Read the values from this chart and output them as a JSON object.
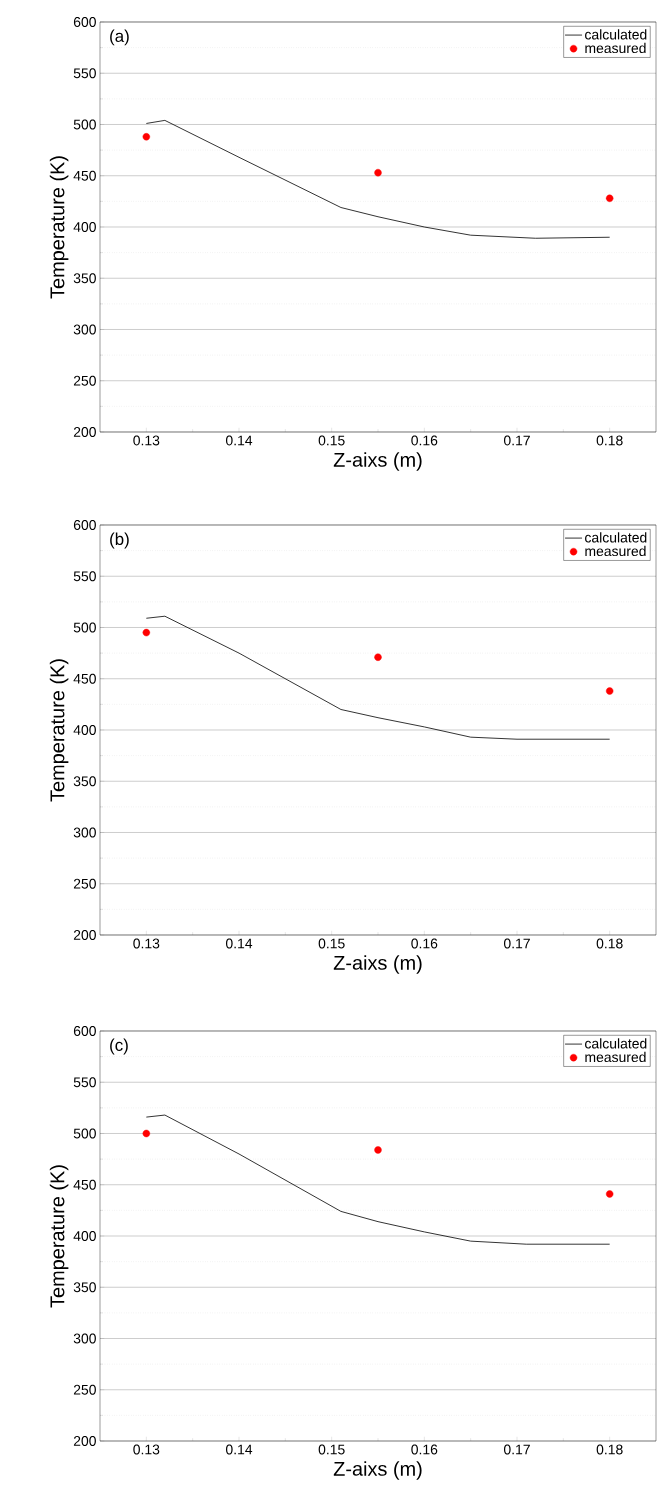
{
  "chart_data": [
    {
      "type": "line",
      "title": "(a)",
      "xlabel": "Z-aixs (m)",
      "ylabel": "Temperature (K)",
      "xlim": [
        0.125,
        0.185
      ],
      "ylim": [
        200,
        600
      ],
      "xticks": [
        0.13,
        0.14,
        0.15,
        0.16,
        0.17,
        0.18
      ],
      "yticks": [
        200,
        250,
        300,
        350,
        400,
        450,
        500,
        550,
        600
      ],
      "grid": "y",
      "legend": "top right",
      "series": [
        {
          "name": "calculated",
          "marker": "none",
          "color": "#000000",
          "x": [
            0.13,
            0.132,
            0.14,
            0.151,
            0.155,
            0.16,
            0.165,
            0.172,
            0.18
          ],
          "values": [
            501,
            504,
            468,
            419,
            410,
            400,
            392,
            389,
            390
          ]
        },
        {
          "name": "measured",
          "type": "scatter",
          "marker": "circle",
          "color": "#ff0000",
          "x": [
            0.13,
            0.155,
            0.18
          ],
          "values": [
            488,
            453,
            428
          ]
        }
      ]
    },
    {
      "type": "line",
      "title": "(b)",
      "xlabel": "Z-aixs (m)",
      "ylabel": "Temperature (K)",
      "xlim": [
        0.125,
        0.185
      ],
      "ylim": [
        200,
        600
      ],
      "xticks": [
        0.13,
        0.14,
        0.15,
        0.16,
        0.17,
        0.18
      ],
      "yticks": [
        200,
        250,
        300,
        350,
        400,
        450,
        500,
        550,
        600
      ],
      "grid": "y",
      "legend": "top right",
      "series": [
        {
          "name": "calculated",
          "marker": "none",
          "color": "#000000",
          "x": [
            0.13,
            0.132,
            0.14,
            0.151,
            0.155,
            0.16,
            0.165,
            0.17,
            0.18
          ],
          "values": [
            509,
            511,
            475,
            420,
            412,
            403,
            393,
            391,
            391
          ]
        },
        {
          "name": "measured",
          "type": "scatter",
          "marker": "circle",
          "color": "#ff0000",
          "x": [
            0.13,
            0.155,
            0.18
          ],
          "values": [
            495,
            471,
            438
          ]
        }
      ]
    },
    {
      "type": "line",
      "title": "(c)",
      "xlabel": "Z-aixs (m)",
      "ylabel": "Temperature (K)",
      "xlim": [
        0.125,
        0.185
      ],
      "ylim": [
        200,
        600
      ],
      "xticks": [
        0.13,
        0.14,
        0.15,
        0.16,
        0.17,
        0.18
      ],
      "yticks": [
        200,
        250,
        300,
        350,
        400,
        450,
        500,
        550,
        600
      ],
      "grid": "y",
      "legend": "top right",
      "series": [
        {
          "name": "calculated",
          "marker": "none",
          "color": "#000000",
          "x": [
            0.13,
            0.132,
            0.14,
            0.151,
            0.155,
            0.16,
            0.165,
            0.171,
            0.18
          ],
          "values": [
            516,
            518,
            480,
            424,
            414,
            404,
            395,
            392,
            392
          ]
        },
        {
          "name": "measured",
          "type": "scatter",
          "marker": "circle",
          "color": "#ff0000",
          "x": [
            0.13,
            0.155,
            0.18
          ],
          "values": [
            500,
            484,
            441
          ]
        }
      ]
    }
  ]
}
